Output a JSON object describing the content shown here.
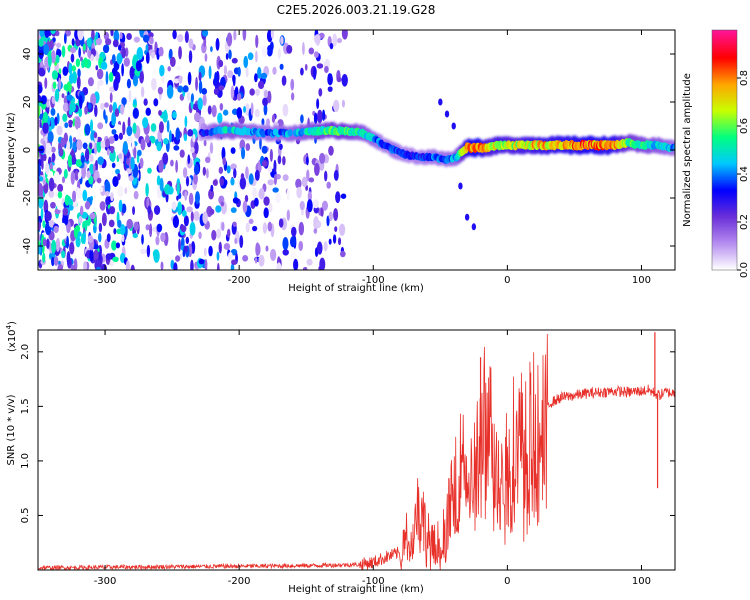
{
  "title": "C2E5.2026.003.21.19.G28",
  "chart_data": [
    {
      "type": "heatmap",
      "name": "spectrogram",
      "xlabel": "Height of straight line (km)",
      "ylabel": "Frequency (Hz)",
      "xlim": [
        -350,
        125
      ],
      "ylim": [
        -50,
        50
      ],
      "xticks": [
        -300,
        -200,
        -100,
        0,
        100
      ],
      "yticks": [
        -40,
        -20,
        0,
        20,
        40
      ],
      "colorbar": {
        "label": "Normalized spectral amplitude",
        "range": [
          0,
          1
        ],
        "ticks": [
          0.0,
          0.2,
          0.4,
          0.6,
          0.8
        ],
        "tick_labels": [
          "0.0",
          "0.2",
          "0.4",
          "0.6",
          "0.8"
        ],
        "colors": [
          "#ffffff",
          "#b48cf0",
          "#6a2fd8",
          "#0000ff",
          "#00c8ff",
          "#00ff80",
          "#c8ff00",
          "#ffa500",
          "#ff0000",
          "#ff1493"
        ]
      },
      "noise_region_x": [
        -350,
        -120
      ],
      "ridge": {
        "x": [
          -228,
          -215,
          -200,
          -180,
          -160,
          -140,
          -120,
          -108,
          -100,
          -92,
          -85,
          -75,
          -65,
          -55,
          -45,
          -38,
          -30,
          -22,
          -15,
          -5,
          0,
          20,
          40,
          60,
          80,
          90,
          100,
          110,
          120,
          125
        ],
        "freq": [
          7,
          8,
          8,
          7,
          7,
          8,
          8,
          7,
          5,
          2,
          0,
          -2,
          -3,
          -3,
          -4,
          -3,
          1,
          1,
          1,
          2,
          2,
          2,
          2,
          2,
          2,
          3,
          2,
          2,
          1,
          1
        ],
        "amplitude": [
          0.3,
          0.5,
          0.5,
          0.4,
          0.45,
          0.55,
          0.6,
          0.5,
          0.45,
          0.35,
          0.4,
          0.35,
          0.35,
          0.4,
          0.4,
          0.45,
          0.8,
          0.9,
          0.7,
          0.75,
          0.7,
          0.75,
          0.8,
          0.85,
          0.8,
          0.6,
          0.55,
          0.5,
          0.45,
          0.4
        ]
      },
      "side_branch": {
        "x": [
          -50,
          -45,
          -40,
          -35,
          -30,
          -25
        ],
        "freq": [
          20,
          15,
          10,
          -15,
          -28,
          -32
        ]
      }
    },
    {
      "type": "line",
      "name": "snr",
      "xlabel": "Height of straight line (km)",
      "ylabel": "SNR (10 * v/v)",
      "exponent_label": "(x10",
      "exponent_power": "4",
      "exponent_close": ")",
      "xlim": [
        -350,
        125
      ],
      "ylim": [
        0,
        2.2
      ],
      "xticks": [
        -300,
        -200,
        -100,
        0,
        100
      ],
      "yticks": [
        0.5,
        1.0,
        1.5,
        2.0
      ],
      "ytick_labels": [
        "0.5",
        "1.0",
        "1.5",
        "2.0"
      ],
      "color": "#e8302a",
      "series": [
        {
          "name": "SNR",
          "x": [
            -350,
            -250,
            -150,
            -110,
            -100,
            -90,
            -80,
            -75,
            -70,
            -66,
            -64,
            -60,
            -56,
            -52,
            -48,
            -44,
            -40,
            -36,
            -32,
            -28,
            -24,
            -20,
            -16,
            -12,
            -8,
            -4,
            0,
            5,
            10,
            15,
            20,
            25,
            30,
            40,
            50,
            60,
            70,
            80,
            90,
            100,
            105,
            110,
            113,
            118,
            125
          ],
          "y": [
            0.02,
            0.03,
            0.04,
            0.05,
            0.07,
            0.12,
            0.16,
            0.28,
            0.45,
            0.6,
            0.55,
            0.3,
            0.18,
            0.22,
            0.28,
            0.5,
            0.7,
            0.9,
            1.2,
            0.8,
            1.0,
            1.2,
            1.5,
            1.3,
            0.9,
            1.15,
            1.05,
            1.25,
            1.25,
            1.3,
            1.35,
            1.45,
            1.52,
            1.58,
            1.6,
            1.62,
            1.63,
            1.64,
            1.63,
            1.64,
            1.65,
            1.62,
            1.6,
            1.63,
            1.62
          ]
        }
      ],
      "spikes": [
        {
          "x": -20,
          "y": 1.95
        },
        {
          "x": 110,
          "y": 2.18
        },
        {
          "x": 112,
          "y": 0.75
        }
      ]
    }
  ]
}
